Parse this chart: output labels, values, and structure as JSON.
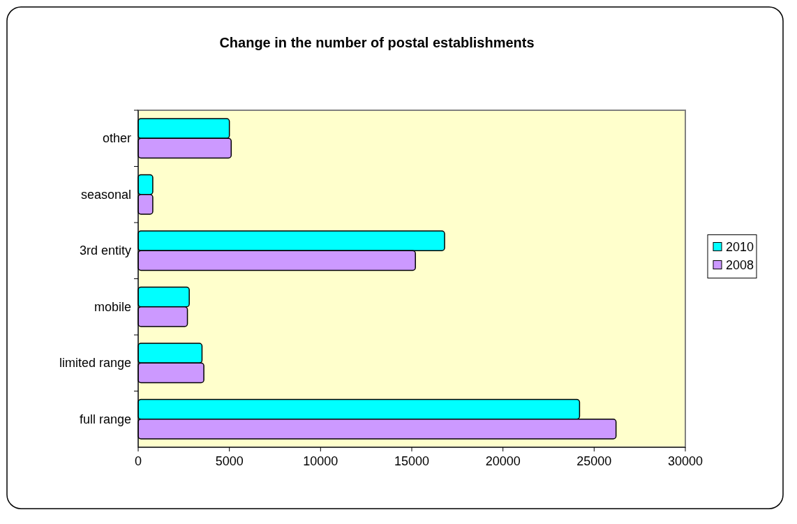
{
  "chart_data": {
    "type": "bar",
    "orientation": "horizontal",
    "title": "Change in the number of postal establishments",
    "categories": [
      "other",
      "seasonal",
      "3rd entity",
      "mobile",
      "limited range",
      "full range"
    ],
    "series": [
      {
        "name": "2010",
        "color": "#00ffff",
        "values": [
          5000,
          800,
          16800,
          2800,
          3500,
          24200
        ]
      },
      {
        "name": "2008",
        "color": "#cc99ff",
        "values": [
          5100,
          800,
          15200,
          2700,
          3600,
          26200
        ]
      }
    ],
    "xlim": [
      0,
      30000
    ],
    "xticks": [
      0,
      5000,
      10000,
      15000,
      20000,
      25000,
      30000
    ],
    "legend": "right",
    "grid": false
  }
}
